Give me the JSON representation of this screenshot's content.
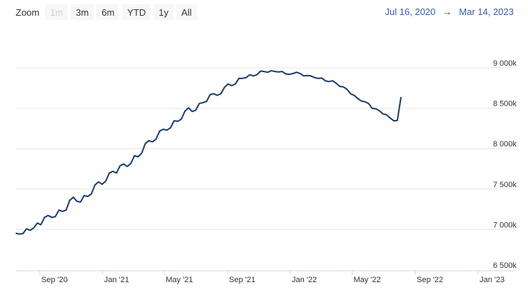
{
  "toolbar": {
    "zoom_label": "Zoom",
    "buttons": [
      {
        "label": "1m",
        "enabled": false
      },
      {
        "label": "3m",
        "enabled": true
      },
      {
        "label": "6m",
        "enabled": true
      },
      {
        "label": "YTD",
        "enabled": true
      },
      {
        "label": "1y",
        "enabled": true
      },
      {
        "label": "All",
        "enabled": true
      }
    ]
  },
  "range": {
    "from": "Jul 16, 2020",
    "arrow": "→",
    "to": "Mar 14, 2023"
  },
  "colors": {
    "line": "#1a3d6d",
    "grid": "#e6e6e6",
    "text": "#333333",
    "range": "#335cad"
  },
  "chart_data": {
    "type": "line",
    "x_type": "date",
    "xlim": [
      "2020-07-16",
      "2023-03-14"
    ],
    "ylim": [
      6500000,
      9000000
    ],
    "x_ticks": [
      {
        "date": "2020-09-01",
        "label": "Sep '20"
      },
      {
        "date": "2021-01-01",
        "label": "Jan '21"
      },
      {
        "date": "2021-05-01",
        "label": "May '21"
      },
      {
        "date": "2021-09-01",
        "label": "Sep '21"
      },
      {
        "date": "2022-01-01",
        "label": "Jan '22"
      },
      {
        "date": "2022-05-01",
        "label": "May '22"
      },
      {
        "date": "2022-09-01",
        "label": "Sep '22"
      },
      {
        "date": "2023-01-01",
        "label": "Jan '23"
      }
    ],
    "y_ticks": [
      {
        "value": 6500000,
        "label": "6 500k"
      },
      {
        "value": 7000000,
        "label": "7 000k"
      },
      {
        "value": 7500000,
        "label": "7 500k"
      },
      {
        "value": 8000000,
        "label": "8 000k"
      },
      {
        "value": 8500000,
        "label": "8 500k"
      },
      {
        "value": 9000000,
        "label": "9 000k"
      }
    ],
    "grid": true,
    "series": [
      {
        "points": [
          [
            "2020-07-16",
            6955000
          ],
          [
            "2020-07-23",
            6945000
          ],
          [
            "2020-07-30",
            6950000
          ],
          [
            "2020-08-06",
            7010000
          ],
          [
            "2020-08-13",
            6990000
          ],
          [
            "2020-08-20",
            7020000
          ],
          [
            "2020-08-27",
            7080000
          ],
          [
            "2020-09-03",
            7060000
          ],
          [
            "2020-09-10",
            7150000
          ],
          [
            "2020-09-17",
            7175000
          ],
          [
            "2020-09-24",
            7150000
          ],
          [
            "2020-10-01",
            7160000
          ],
          [
            "2020-10-08",
            7240000
          ],
          [
            "2020-10-15",
            7225000
          ],
          [
            "2020-10-22",
            7240000
          ],
          [
            "2020-10-29",
            7360000
          ],
          [
            "2020-11-05",
            7400000
          ],
          [
            "2020-11-12",
            7350000
          ],
          [
            "2020-11-19",
            7340000
          ],
          [
            "2020-11-26",
            7420000
          ],
          [
            "2020-12-03",
            7410000
          ],
          [
            "2020-12-10",
            7440000
          ],
          [
            "2020-12-17",
            7550000
          ],
          [
            "2020-12-24",
            7590000
          ],
          [
            "2020-12-31",
            7560000
          ],
          [
            "2021-01-07",
            7600000
          ],
          [
            "2021-01-14",
            7700000
          ],
          [
            "2021-01-21",
            7720000
          ],
          [
            "2021-01-28",
            7700000
          ],
          [
            "2021-02-04",
            7790000
          ],
          [
            "2021-02-11",
            7810000
          ],
          [
            "2021-02-18",
            7780000
          ],
          [
            "2021-02-25",
            7820000
          ],
          [
            "2021-03-04",
            7915000
          ],
          [
            "2021-03-11",
            7900000
          ],
          [
            "2021-03-18",
            7945000
          ],
          [
            "2021-03-25",
            8065000
          ],
          [
            "2021-04-01",
            8100000
          ],
          [
            "2021-04-08",
            8085000
          ],
          [
            "2021-04-15",
            8120000
          ],
          [
            "2021-04-22",
            8220000
          ],
          [
            "2021-04-29",
            8240000
          ],
          [
            "2021-05-06",
            8230000
          ],
          [
            "2021-05-13",
            8260000
          ],
          [
            "2021-05-20",
            8345000
          ],
          [
            "2021-05-27",
            8340000
          ],
          [
            "2021-06-03",
            8365000
          ],
          [
            "2021-06-10",
            8465000
          ],
          [
            "2021-06-17",
            8505000
          ],
          [
            "2021-06-24",
            8460000
          ],
          [
            "2021-07-01",
            8475000
          ],
          [
            "2021-07-08",
            8560000
          ],
          [
            "2021-07-15",
            8570000
          ],
          [
            "2021-07-22",
            8585000
          ],
          [
            "2021-07-29",
            8670000
          ],
          [
            "2021-08-05",
            8680000
          ],
          [
            "2021-08-12",
            8660000
          ],
          [
            "2021-08-19",
            8680000
          ],
          [
            "2021-08-26",
            8760000
          ],
          [
            "2021-09-02",
            8800000
          ],
          [
            "2021-09-09",
            8780000
          ],
          [
            "2021-09-16",
            8800000
          ],
          [
            "2021-09-23",
            8870000
          ],
          [
            "2021-09-30",
            8870000
          ],
          [
            "2021-10-07",
            8880000
          ],
          [
            "2021-10-14",
            8915000
          ],
          [
            "2021-10-21",
            8900000
          ],
          [
            "2021-10-28",
            8915000
          ],
          [
            "2021-11-04",
            8960000
          ],
          [
            "2021-11-11",
            8955000
          ],
          [
            "2021-11-18",
            8945000
          ],
          [
            "2021-11-25",
            8965000
          ],
          [
            "2021-12-02",
            8955000
          ],
          [
            "2021-12-09",
            8950000
          ],
          [
            "2021-12-16",
            8955000
          ],
          [
            "2021-12-23",
            8925000
          ],
          [
            "2021-12-30",
            8920000
          ],
          [
            "2022-01-06",
            8930000
          ],
          [
            "2022-01-13",
            8945000
          ],
          [
            "2022-01-20",
            8930000
          ],
          [
            "2022-01-27",
            8900000
          ],
          [
            "2022-02-03",
            8905000
          ],
          [
            "2022-02-10",
            8900000
          ],
          [
            "2022-02-17",
            8880000
          ],
          [
            "2022-02-24",
            8870000
          ],
          [
            "2022-03-03",
            8875000
          ],
          [
            "2022-03-10",
            8840000
          ],
          [
            "2022-03-17",
            8830000
          ],
          [
            "2022-03-24",
            8840000
          ],
          [
            "2022-03-31",
            8810000
          ],
          [
            "2022-04-07",
            8770000
          ],
          [
            "2022-04-14",
            8765000
          ],
          [
            "2022-04-21",
            8735000
          ],
          [
            "2022-04-28",
            8680000
          ],
          [
            "2022-05-05",
            8660000
          ],
          [
            "2022-05-12",
            8620000
          ],
          [
            "2022-05-19",
            8590000
          ],
          [
            "2022-05-26",
            8580000
          ],
          [
            "2022-06-02",
            8560000
          ],
          [
            "2022-06-09",
            8500000
          ],
          [
            "2022-06-16",
            8495000
          ],
          [
            "2022-06-23",
            8470000
          ],
          [
            "2022-06-30",
            8430000
          ],
          [
            "2022-07-07",
            8420000
          ],
          [
            "2022-07-14",
            8380000
          ],
          [
            "2022-07-21",
            8345000
          ],
          [
            "2022-07-28",
            8350000
          ],
          [
            "2022-08-04",
            8640000
          ]
        ]
      }
    ]
  }
}
